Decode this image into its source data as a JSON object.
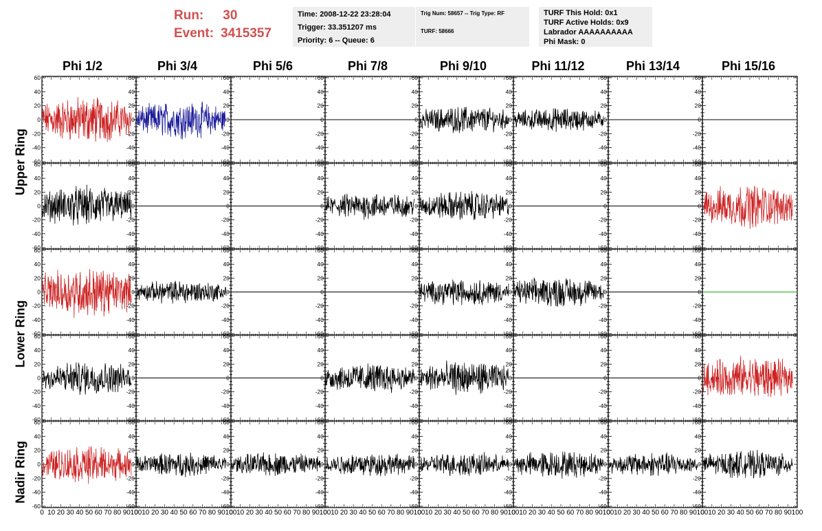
{
  "header": {
    "run_label": "Run:",
    "run_value": "30",
    "event_label": "Event:",
    "event_value": "3415357",
    "accent_color": "#d0504f"
  },
  "info_time": {
    "time": "Time: 2008-12-22 23:28:04",
    "trigger": "Trigger: 33.351207 ms",
    "priority": "Priority: 6 -- Queue: 6"
  },
  "info_trig": {
    "trig": "Trig Num: 58657 -- Trig Type: RF",
    "turf": "TURF: 58666"
  },
  "info_turf": {
    "this_hold": "TURF This Hold: 0x1",
    "active_holds": "TURF Active Holds: 0x9",
    "labrador": "Labrador AAAAAAAAAA",
    "phi_mask": "Phi Mask: 0"
  },
  "phi_headers": [
    "Phi 1/2",
    "Phi 3/4",
    "Phi 5/6",
    "Phi 7/8",
    "Phi 9/10",
    "Phi 11/12",
    "Phi 13/14",
    "Phi 15/16"
  ],
  "ring_labels": [
    "Upper Ring",
    "Lower Ring",
    "Nadir Ring"
  ],
  "axis": {
    "y_ticks": [
      "60",
      "40",
      "20",
      "0",
      "-20",
      "-40",
      "-60"
    ],
    "x_ticks": [
      "0",
      "10",
      "20",
      "30",
      "40",
      "50",
      "60",
      "70",
      "80",
      "90",
      "100"
    ]
  },
  "colors": {
    "red": "#cc2222",
    "blue": "#1a1a99",
    "black": "#000000",
    "green": "#11aa11"
  },
  "panels": [
    [
      "red",
      "blue",
      "flat",
      "flat",
      "black",
      "black",
      "flat",
      "flat"
    ],
    [
      "black",
      "flat",
      "flat",
      "black",
      "black",
      "flat",
      "flat",
      "red"
    ],
    [
      "red",
      "black",
      "flat",
      "flat",
      "black",
      "black",
      "flat",
      "flat-green"
    ],
    [
      "black",
      "flat",
      "flat",
      "black",
      "black",
      "flat",
      "flat",
      "red"
    ],
    [
      "red",
      "black",
      "black",
      "black",
      "black",
      "black",
      "black",
      "black"
    ]
  ],
  "panel_amplitude": [
    [
      28,
      22,
      0,
      0,
      16,
      14,
      0,
      0
    ],
    [
      24,
      0,
      0,
      16,
      18,
      0,
      0,
      26
    ],
    [
      30,
      14,
      0,
      0,
      16,
      18,
      0,
      0
    ],
    [
      20,
      0,
      0,
      18,
      20,
      0,
      0,
      26
    ],
    [
      22,
      14,
      14,
      14,
      14,
      16,
      14,
      16
    ]
  ]
}
